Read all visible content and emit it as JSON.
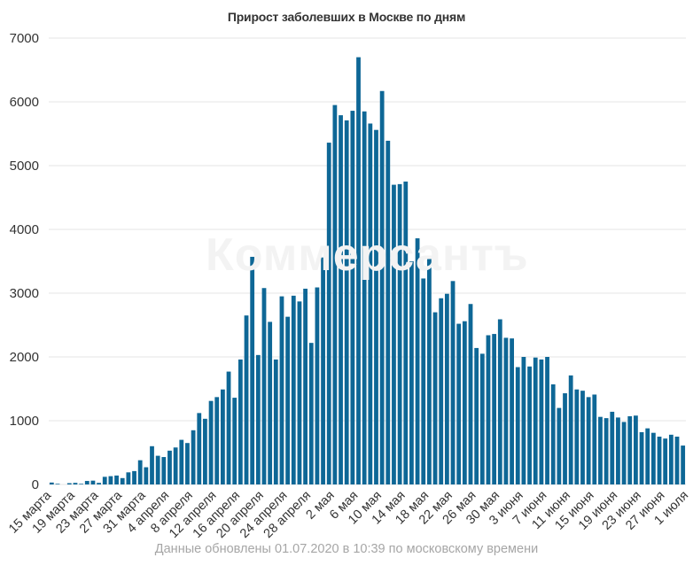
{
  "chart_data": {
    "type": "bar",
    "title": "Прирост заболевших в Москве по дням",
    "xlabel": "",
    "ylabel": "",
    "ylim": [
      0,
      7000
    ],
    "yticks": [
      0,
      1000,
      2000,
      3000,
      4000,
      5000,
      6000,
      7000
    ],
    "grid": true,
    "bar_color": "#0e6796",
    "x_tick_labels": [
      {
        "index": 0,
        "label": "15 марта"
      },
      {
        "index": 4,
        "label": "19 марта"
      },
      {
        "index": 8,
        "label": "23 марта"
      },
      {
        "index": 12,
        "label": "27 марта"
      },
      {
        "index": 16,
        "label": "31 марта"
      },
      {
        "index": 20,
        "label": "4 апреля"
      },
      {
        "index": 24,
        "label": "8 апреля"
      },
      {
        "index": 28,
        "label": "12 апреля"
      },
      {
        "index": 32,
        "label": "16 апреля"
      },
      {
        "index": 36,
        "label": "20 апреля"
      },
      {
        "index": 40,
        "label": "24 апреля"
      },
      {
        "index": 44,
        "label": "28 апреля"
      },
      {
        "index": 48,
        "label": "2 мая"
      },
      {
        "index": 52,
        "label": "6 мая"
      },
      {
        "index": 56,
        "label": "10 мая"
      },
      {
        "index": 60,
        "label": "14 мая"
      },
      {
        "index": 64,
        "label": "18 мая"
      },
      {
        "index": 68,
        "label": "22 мая"
      },
      {
        "index": 72,
        "label": "26 мая"
      },
      {
        "index": 76,
        "label": "30 мая"
      },
      {
        "index": 80,
        "label": "3 июня"
      },
      {
        "index": 84,
        "label": "7 июня"
      },
      {
        "index": 88,
        "label": "11 июня"
      },
      {
        "index": 92,
        "label": "15 июня"
      },
      {
        "index": 96,
        "label": "19 июня"
      },
      {
        "index": 100,
        "label": "23 июня"
      },
      {
        "index": 104,
        "label": "27 июня"
      },
      {
        "index": 108,
        "label": "1 июля"
      }
    ],
    "values": [
      30,
      10,
      0,
      20,
      25,
      10,
      55,
      60,
      25,
      120,
      130,
      140,
      100,
      190,
      210,
      380,
      270,
      600,
      450,
      430,
      530,
      580,
      700,
      650,
      850,
      1120,
      1030,
      1310,
      1370,
      1490,
      1770,
      1360,
      1960,
      2650,
      3570,
      2030,
      3080,
      2550,
      1960,
      2950,
      2630,
      2960,
      2870,
      3070,
      2220,
      3090,
      3560,
      5360,
      5950,
      5790,
      5710,
      5860,
      6700,
      5850,
      5660,
      5560,
      6170,
      5390,
      4700,
      4710,
      4750,
      3500,
      3860,
      3230,
      3540,
      2700,
      2920,
      2990,
      3190,
      2520,
      2560,
      2830,
      2140,
      2050,
      2340,
      2360,
      2590,
      2300,
      2290,
      1840,
      2000,
      1850,
      1990,
      1960,
      2000,
      1570,
      1200,
      1430,
      1710,
      1490,
      1470,
      1370,
      1410,
      1060,
      1040,
      1140,
      1050,
      980,
      1070,
      1080,
      820,
      880,
      810,
      750,
      720,
      780,
      750,
      610
    ]
  },
  "watermark": "Коммерсантъ",
  "footer_note": "Данные обновлены 01.07.2020 в 10:39 по московскому времени"
}
